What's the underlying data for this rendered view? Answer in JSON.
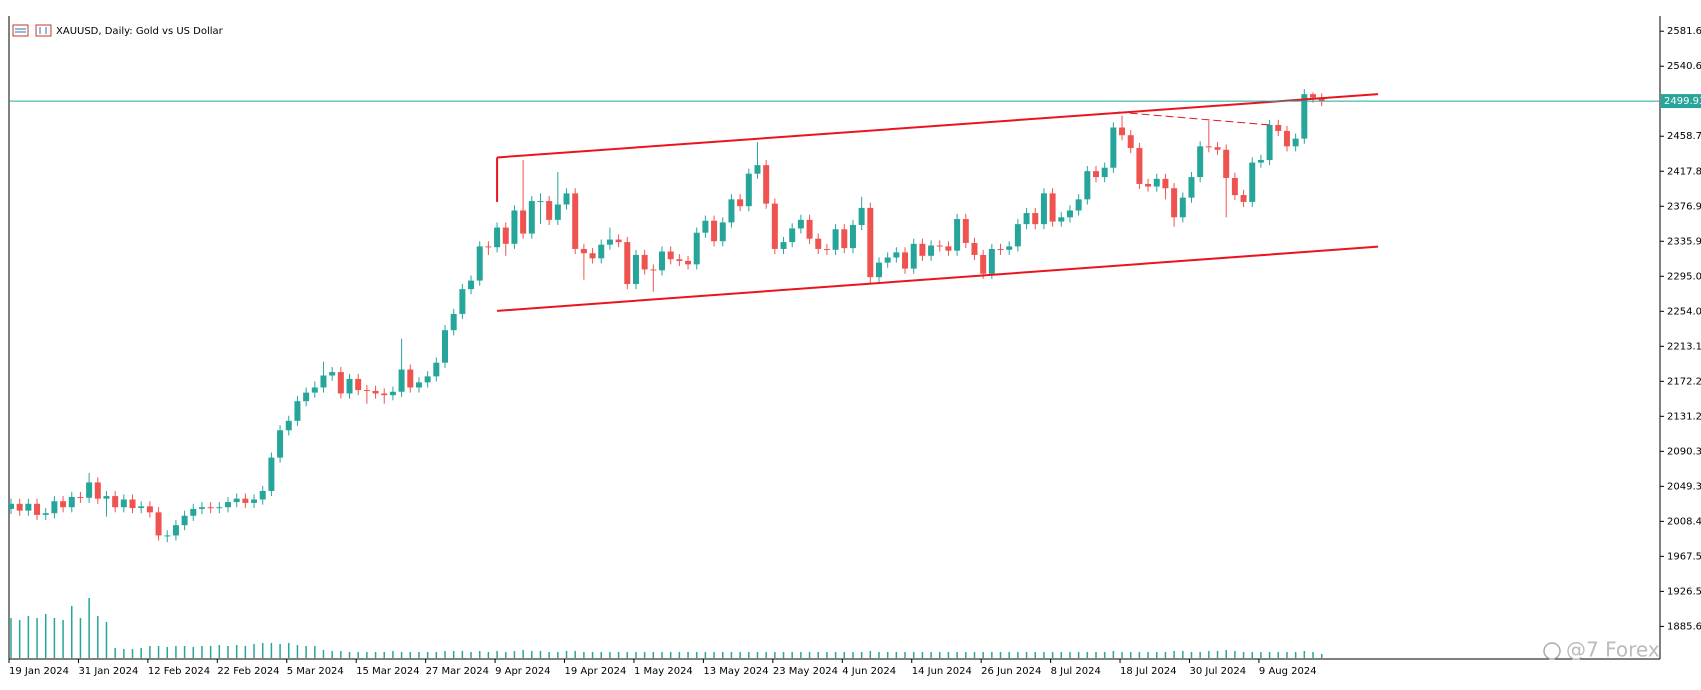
{
  "chart_data": {
    "type": "candlestick",
    "title": "XAUUSD, Daily:  Gold vs US Dollar",
    "categories": [
      "19 Jan 2024",
      null,
      null,
      null,
      null,
      null,
      null,
      null,
      "31 Jan 2024",
      null,
      null,
      null,
      null,
      null,
      null,
      null,
      "12 Feb 2024",
      null,
      null,
      null,
      null,
      null,
      null,
      null,
      "22 Feb 2024",
      null,
      null,
      null,
      null,
      null,
      null,
      null,
      "5 Mar 2024",
      null,
      null,
      null,
      null,
      null,
      null,
      null,
      "15 Mar 2024",
      null,
      null,
      null,
      null,
      null,
      null,
      null,
      "27 Mar 2024",
      null,
      null,
      null,
      null,
      null,
      null,
      null,
      "9 Apr 2024",
      null,
      null,
      null,
      null,
      null,
      null,
      null,
      "19 Apr 2024",
      null,
      null,
      null,
      null,
      null,
      null,
      null,
      "1 May 2024",
      null,
      null,
      null,
      null,
      null,
      null,
      null,
      "13 May 2024",
      null,
      null,
      null,
      null,
      null,
      null,
      null,
      "23 May 2024",
      null,
      null,
      null,
      null,
      null,
      null,
      null,
      "4 Jun 2024",
      null,
      null,
      null,
      null,
      null,
      null,
      null,
      "14 Jun 2024",
      null,
      null,
      null,
      null,
      null,
      null,
      null,
      "26 Jun 2024",
      null,
      null,
      null,
      null,
      null,
      null,
      null,
      "8 Jul 2024",
      null,
      null,
      null,
      null,
      null,
      null,
      null,
      "18 Jul 2024",
      null,
      null,
      null,
      null,
      null,
      null,
      null,
      "30 Jul 2024",
      null,
      null,
      null,
      null,
      null,
      null,
      null,
      "9 Aug 2024",
      null,
      null,
      null,
      null,
      null,
      null,
      null
    ],
    "open": [
      2023,
      2029,
      2021,
      2029,
      2016,
      2018,
      2032,
      2025,
      2037,
      2036,
      2054,
      2035,
      2038,
      2025,
      2034,
      2024,
      2026,
      2019,
      1992,
      1992,
      2004,
      2015,
      2023,
      2025,
      2024,
      2025,
      2031,
      2035,
      2030,
      2034,
      2044,
      2083,
      2115,
      2126,
      2149,
      2159,
      2165,
      2179,
      2183,
      2158,
      2175,
      2162,
      2161,
      2158,
      2156,
      2160,
      2186,
      2165,
      2171,
      2178,
      2194,
      2232,
      2251,
      2280,
      2290,
      2330,
      2329,
      2352,
      2333,
      2372,
      2345,
      2383,
      2383,
      2361,
      2379,
      2392,
      2327,
      2322,
      2316,
      2332,
      2338,
      2335,
      2286,
      2320,
      2303,
      2302,
      2324,
      2315,
      2313,
      2309,
      2346,
      2360,
      2336,
      2358,
      2385,
      2377,
      2415,
      2425,
      2380,
      2327,
      2335,
      2351,
      2361,
      2339,
      2327,
      2326,
      2350,
      2328,
      2355,
      2375,
      2294,
      2311,
      2317,
      2323,
      2304,
      2333,
      2319,
      2331,
      2330,
      2325,
      2362,
      2334,
      2320,
      2298,
      2327,
      2326,
      2330,
      2356,
      2369,
      2356,
      2392,
      2359,
      2364,
      2372,
      2385,
      2418,
      2411,
      2422,
      2469,
      2460,
      2445,
      2403,
      2400,
      2409,
      2398,
      2364,
      2387,
      2411,
      2447,
      2446,
      2443,
      2410,
      2390,
      2382,
      2428,
      2431,
      2472,
      2465,
      2447,
      2456,
      2508,
      2504
    ],
    "high": [
      2035,
      2035,
      2035,
      2035,
      2024,
      2038,
      2038,
      2043,
      2043,
      2065,
      2060,
      2044,
      2044,
      2040,
      2040,
      2032,
      2032,
      2025,
      1998,
      2010,
      2021,
      2029,
      2031,
      2031,
      2031,
      2037,
      2041,
      2041,
      2040,
      2050,
      2089,
      2121,
      2132,
      2155,
      2165,
      2172,
      2195,
      2189,
      2189,
      2181,
      2181,
      2168,
      2167,
      2164,
      2166,
      2222,
      2192,
      2177,
      2184,
      2200,
      2238,
      2257,
      2286,
      2296,
      2336,
      2336,
      2358,
      2358,
      2378,
      2431,
      2389,
      2392,
      2389,
      2417,
      2398,
      2398,
      2333,
      2328,
      2338,
      2352,
      2344,
      2341,
      2326,
      2326,
      2309,
      2330,
      2330,
      2321,
      2319,
      2352,
      2366,
      2366,
      2364,
      2391,
      2391,
      2421,
      2452,
      2431,
      2386,
      2341,
      2357,
      2367,
      2367,
      2345,
      2333,
      2356,
      2356,
      2361,
      2388,
      2381,
      2317,
      2323,
      2329,
      2329,
      2339,
      2339,
      2337,
      2337,
      2336,
      2368,
      2368,
      2340,
      2326,
      2333,
      2333,
      2336,
      2362,
      2375,
      2375,
      2398,
      2398,
      2370,
      2378,
      2391,
      2424,
      2424,
      2428,
      2475,
      2483,
      2466,
      2451,
      2409,
      2415,
      2415,
      2404,
      2393,
      2417,
      2453,
      2477,
      2452,
      2449,
      2416,
      2396,
      2434,
      2437,
      2478,
      2478,
      2471,
      2462,
      2514,
      2510,
      2509
    ],
    "low": [
      2017,
      2015,
      2015,
      2010,
      2010,
      2012,
      2019,
      2019,
      2030,
      2030,
      2029,
      2014,
      2019,
      2019,
      2018,
      2018,
      2013,
      1986,
      1984,
      1986,
      1998,
      2009,
      2017,
      2018,
      2018,
      2019,
      2025,
      2024,
      2024,
      2028,
      2038,
      2077,
      2109,
      2120,
      2143,
      2153,
      2159,
      2173,
      2152,
      2152,
      2156,
      2146,
      2152,
      2146,
      2150,
      2154,
      2159,
      2159,
      2165,
      2172,
      2188,
      2226,
      2245,
      2274,
      2284,
      2320,
      2323,
      2319,
      2327,
      2339,
      2339,
      2356,
      2355,
      2355,
      2373,
      2321,
      2291,
      2310,
      2310,
      2326,
      2329,
      2280,
      2280,
      2297,
      2277,
      2296,
      2309,
      2307,
      2303,
      2303,
      2340,
      2330,
      2330,
      2352,
      2371,
      2371,
      2409,
      2374,
      2321,
      2321,
      2329,
      2345,
      2333,
      2321,
      2320,
      2320,
      2322,
      2322,
      2349,
      2287,
      2288,
      2305,
      2311,
      2298,
      2298,
      2313,
      2313,
      2324,
      2319,
      2319,
      2328,
      2314,
      2292,
      2292,
      2320,
      2320,
      2324,
      2350,
      2350,
      2350,
      2353,
      2353,
      2358,
      2366,
      2379,
      2405,
      2405,
      2416,
      2454,
      2439,
      2397,
      2394,
      2394,
      2385,
      2353,
      2358,
      2381,
      2405,
      2440,
      2437,
      2364,
      2384,
      2376,
      2376,
      2422,
      2425,
      2459,
      2441,
      2441,
      2450,
      2498,
      2494
    ],
    "close": [
      2029,
      2021,
      2029,
      2016,
      2018,
      2032,
      2025,
      2037,
      2036,
      2054,
      2035,
      2038,
      2025,
      2034,
      2024,
      2026,
      2019,
      1992,
      1992,
      2004,
      2015,
      2023,
      2025,
      2024,
      2025,
      2031,
      2035,
      2030,
      2034,
      2044,
      2083,
      2115,
      2126,
      2149,
      2159,
      2165,
      2179,
      2183,
      2158,
      2175,
      2162,
      2161,
      2158,
      2156,
      2160,
      2186,
      2165,
      2171,
      2178,
      2194,
      2232,
      2251,
      2280,
      2290,
      2330,
      2329,
      2352,
      2333,
      2372,
      2345,
      2383,
      2383,
      2361,
      2379,
      2392,
      2327,
      2322,
      2316,
      2332,
      2338,
      2335,
      2286,
      2320,
      2303,
      2302,
      2324,
      2315,
      2313,
      2309,
      2346,
      2360,
      2336,
      2358,
      2385,
      2377,
      2415,
      2425,
      2380,
      2327,
      2335,
      2351,
      2361,
      2339,
      2327,
      2326,
      2350,
      2328,
      2355,
      2375,
      2294,
      2311,
      2317,
      2323,
      2304,
      2333,
      2319,
      2331,
      2330,
      2325,
      2362,
      2334,
      2320,
      2298,
      2327,
      2326,
      2330,
      2356,
      2369,
      2356,
      2392,
      2359,
      2364,
      2372,
      2385,
      2418,
      2411,
      2422,
      2469,
      2460,
      2445,
      2403,
      2400,
      2409,
      2398,
      2364,
      2387,
      2411,
      2447,
      2446,
      2443,
      2410,
      2390,
      2382,
      2428,
      2431,
      2472,
      2465,
      2447,
      2456,
      2508,
      2504,
      2500
    ],
    "volume": [
      40,
      38,
      42,
      40,
      44,
      40,
      38,
      52,
      40,
      60,
      42,
      36,
      10,
      9,
      9,
      10,
      12,
      12,
      11,
      12,
      12,
      11,
      12,
      12,
      13,
      12,
      13,
      12,
      14,
      15,
      15,
      14,
      15,
      13,
      12,
      12,
      8,
      7,
      7,
      6,
      6,
      6,
      6,
      6,
      7,
      6,
      6,
      6,
      6,
      6,
      7,
      7,
      7,
      6,
      7,
      6,
      7,
      6,
      7,
      8,
      7,
      7,
      6,
      6,
      7,
      7,
      6,
      6,
      6,
      6,
      6,
      6,
      6,
      6,
      6,
      6,
      6,
      6,
      6,
      6,
      6,
      6,
      6,
      6,
      6,
      6,
      6,
      6,
      6,
      6,
      6,
      6,
      6,
      6,
      6,
      6,
      6,
      6,
      6,
      7,
      6,
      6,
      6,
      6,
      6,
      6,
      6,
      6,
      6,
      6,
      6,
      6,
      6,
      6,
      6,
      6,
      6,
      6,
      6,
      6,
      6,
      6,
      6,
      6,
      6,
      6,
      6,
      7,
      6,
      6,
      6,
      6,
      6,
      6,
      7,
      7,
      6,
      6,
      7,
      7,
      8,
      7,
      6,
      6,
      6,
      6,
      6,
      6,
      6,
      7,
      6,
      4
    ],
    "up_color": "#26a69a",
    "down_color": "#ef5350",
    "volume_color": "#26a69a",
    "ylim": [
      1847.5,
      2599.4
    ],
    "yticks": [
      2581.61,
      2540.67,
      2458.79,
      2417.85,
      2376.91,
      2335.97,
      2295.03,
      2254.09,
      2213.15,
      2172.21,
      2131.27,
      2090.33,
      2049.39,
      2008.45,
      1967.51,
      1926.57,
      1885.63
    ],
    "price_line": {
      "value": 2499.93,
      "color": "#26a69a"
    },
    "trendlines": [
      {
        "x": [
          56,
          157.5
        ],
        "y": [
          2434,
          2508
        ],
        "color": "#e8141e",
        "style": "solid"
      },
      {
        "x": [
          56,
          157.5
        ],
        "y": [
          2254.6,
          2329.7
        ],
        "color": "#e8141e",
        "style": "solid"
      },
      {
        "x": [
          56,
          56
        ],
        "y": [
          2434,
          2382
        ],
        "color": "#e8141e",
        "style": "solid"
      },
      {
        "x": [
          127.5,
          145
        ],
        "y": [
          2487,
          2472
        ],
        "color": "#e8141e",
        "style": "dashed"
      }
    ],
    "watermark": "@7 Forex"
  }
}
